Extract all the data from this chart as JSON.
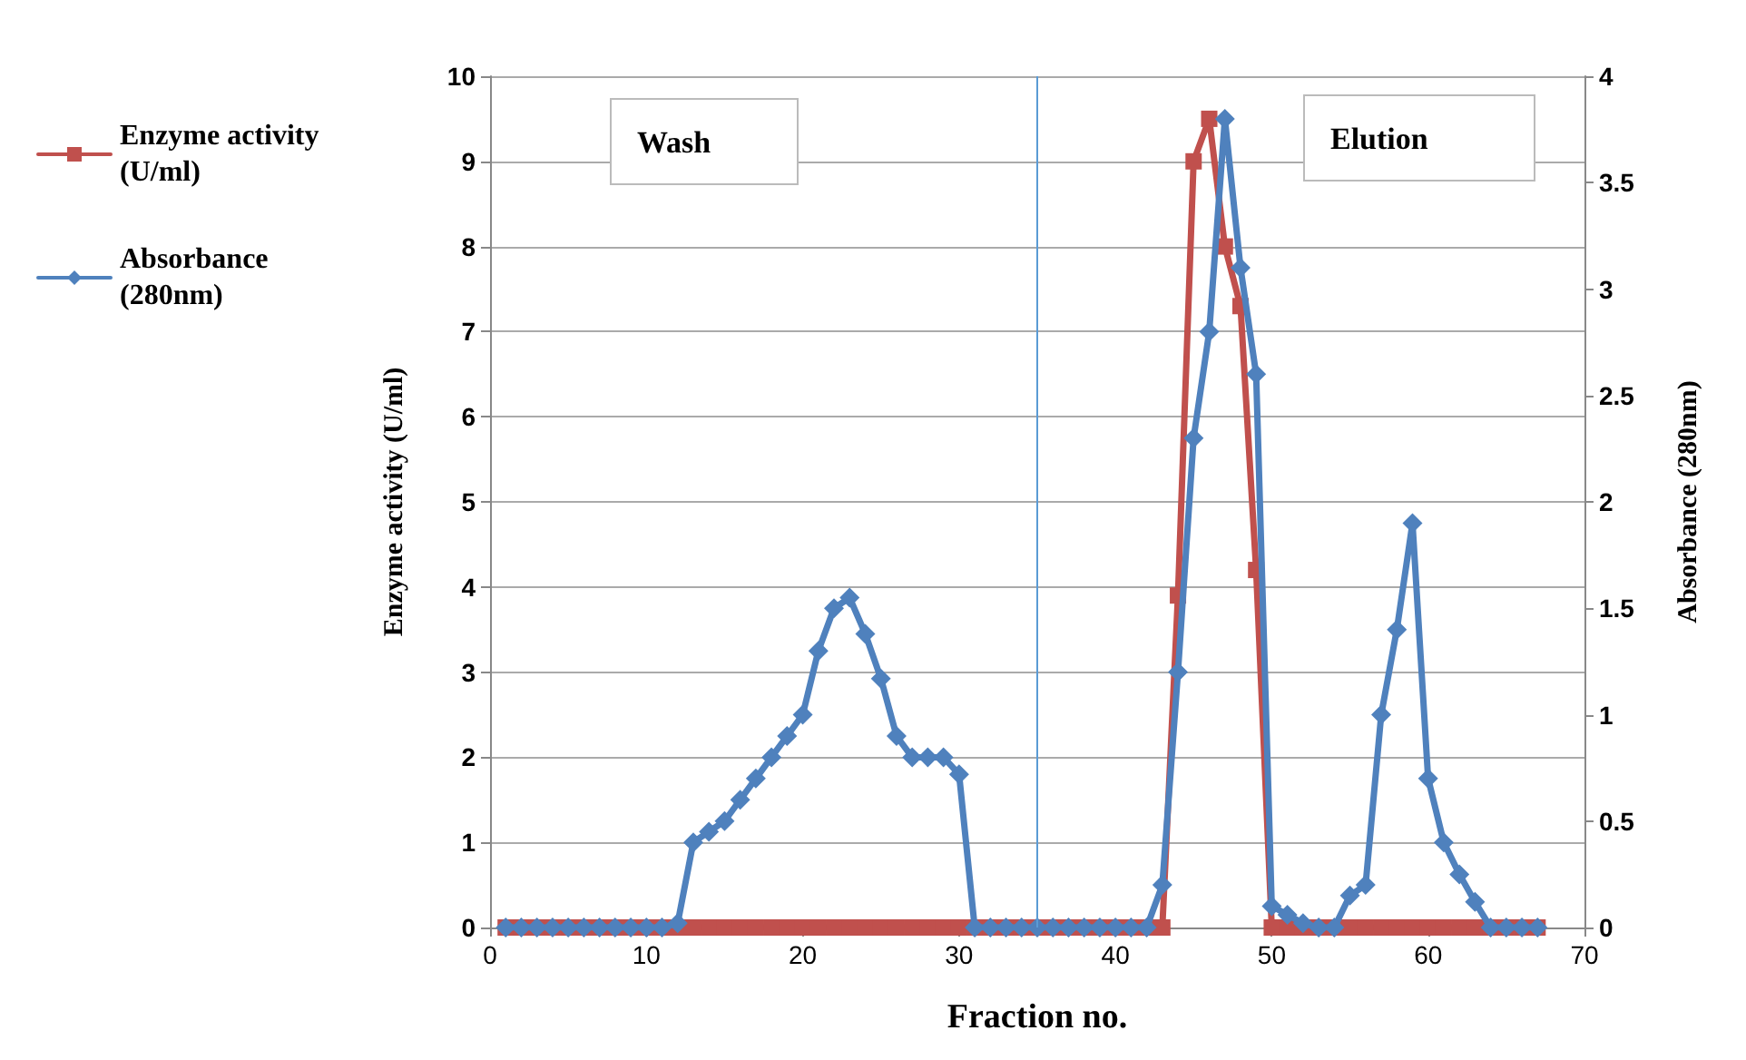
{
  "chart_data": {
    "type": "line",
    "xlabel": "Fraction no.",
    "ylabel": "Enzyme activity (U/ml)",
    "y2label": "Absorbance (280nm)",
    "x": [
      1,
      2,
      3,
      4,
      5,
      6,
      7,
      8,
      9,
      10,
      11,
      12,
      13,
      14,
      15,
      16,
      17,
      18,
      19,
      20,
      21,
      22,
      23,
      24,
      25,
      26,
      27,
      28,
      29,
      30,
      31,
      32,
      33,
      34,
      35,
      36,
      37,
      38,
      39,
      40,
      41,
      42,
      43,
      44,
      45,
      46,
      47,
      48,
      49,
      50,
      51,
      52,
      53,
      54,
      55,
      56,
      57,
      58,
      59,
      60,
      61,
      62,
      63,
      64,
      65,
      66,
      67
    ],
    "series": [
      {
        "name": "Enzyme activity (U/ml)",
        "color": "#c0504d",
        "marker": "square",
        "values": [
          0,
          0,
          0,
          0,
          0,
          0,
          0,
          0,
          0,
          0,
          0,
          0,
          0,
          0,
          0,
          0,
          0,
          0,
          0,
          0,
          0,
          0,
          0,
          0,
          0,
          0,
          0,
          0,
          0,
          0,
          0,
          0,
          0,
          0,
          0,
          0,
          0,
          0,
          0,
          0,
          0,
          0,
          0,
          3.9,
          9.0,
          9.5,
          8.0,
          7.3,
          4.2,
          0,
          0,
          0,
          0,
          0,
          0,
          0,
          0,
          0,
          0,
          0,
          0,
          0,
          0,
          0,
          0,
          0,
          0
        ]
      },
      {
        "name": "Absorbance (280nm)",
        "color": "#4f81bd",
        "marker": "diamond",
        "axis": "y2",
        "values": [
          0,
          0,
          0,
          0,
          0,
          0,
          0,
          0,
          0,
          0,
          0,
          0.02,
          0.4,
          0.45,
          0.5,
          0.6,
          0.7,
          0.8,
          0.9,
          1.0,
          1.3,
          1.5,
          1.55,
          1.38,
          1.17,
          0.9,
          0.8,
          0.8,
          0.8,
          0.72,
          0,
          0,
          0,
          0,
          0,
          0,
          0,
          0,
          0,
          0,
          0,
          0,
          0.2,
          1.2,
          2.3,
          2.8,
          3.8,
          3.1,
          2.6,
          0.1,
          0.06,
          0.02,
          0,
          0,
          0.15,
          0.2,
          1.0,
          1.4,
          1.9,
          0.7,
          0.4,
          0.25,
          0.12,
          0,
          0,
          0,
          0
        ]
      }
    ],
    "xlim": [
      0,
      70
    ],
    "xticks": [
      0,
      10,
      20,
      30,
      40,
      50,
      60,
      70
    ],
    "ylim": [
      0,
      10
    ],
    "yticks": [
      0,
      1,
      2,
      3,
      4,
      5,
      6,
      7,
      8,
      9,
      10
    ],
    "y2lim": [
      0,
      4
    ],
    "y2ticks": [
      0,
      0.5,
      1,
      1.5,
      2,
      2.5,
      3,
      3.5,
      4
    ],
    "ref_lines": [
      {
        "axis": "x",
        "value": 35,
        "color": "#5b9bd5"
      }
    ],
    "annotations": [
      "Wash",
      "Elution"
    ],
    "grid": "y",
    "legend": "left",
    "line_style": "solid"
  }
}
